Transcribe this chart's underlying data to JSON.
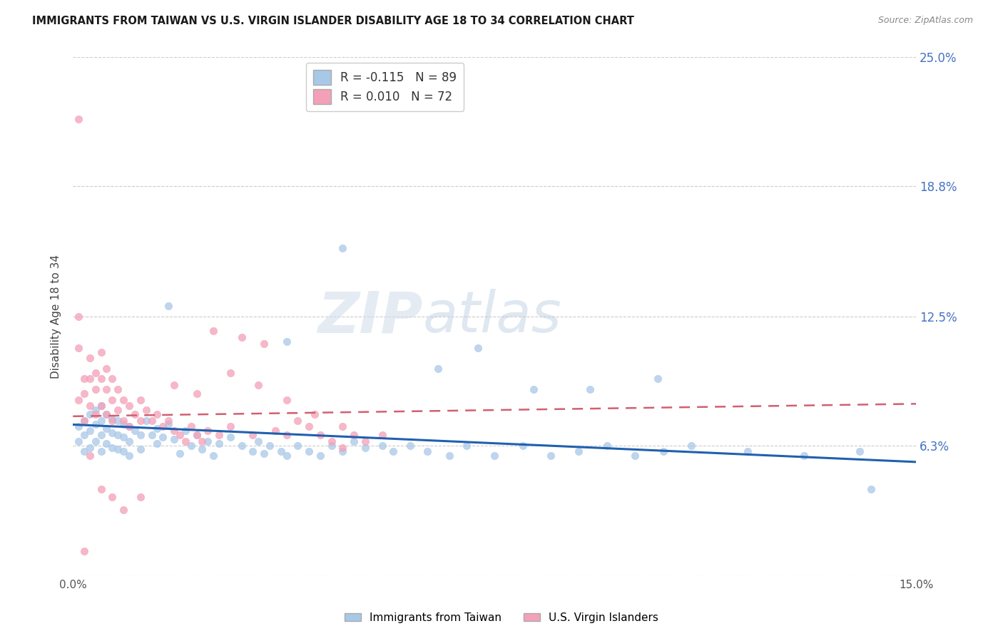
{
  "title": "IMMIGRANTS FROM TAIWAN VS U.S. VIRGIN ISLANDER DISABILITY AGE 18 TO 34 CORRELATION CHART",
  "source": "Source: ZipAtlas.com",
  "ylabel": "Disability Age 18 to 34",
  "xlim": [
    0.0,
    0.15
  ],
  "ylim": [
    0.0,
    0.25
  ],
  "ytick_positions": [
    0.0,
    0.063,
    0.125,
    0.188,
    0.25
  ],
  "right_ytick_labels": [
    "",
    "6.3%",
    "12.5%",
    "18.8%",
    "25.0%"
  ],
  "taiwan_color": "#a8c8e8",
  "virgin_color": "#f4a0b8",
  "taiwan_line_color": "#2060b0",
  "virgin_line_color": "#d06070",
  "background_color": "#ffffff",
  "taiwan_R": -0.115,
  "taiwan_N": 89,
  "virgin_R": 0.01,
  "virgin_N": 72,
  "taiwan_scatter_x": [
    0.001,
    0.001,
    0.002,
    0.002,
    0.002,
    0.003,
    0.003,
    0.003,
    0.004,
    0.004,
    0.004,
    0.005,
    0.005,
    0.005,
    0.005,
    0.006,
    0.006,
    0.006,
    0.007,
    0.007,
    0.007,
    0.008,
    0.008,
    0.008,
    0.009,
    0.009,
    0.009,
    0.01,
    0.01,
    0.01,
    0.011,
    0.012,
    0.012,
    0.013,
    0.014,
    0.015,
    0.015,
    0.016,
    0.017,
    0.018,
    0.019,
    0.02,
    0.021,
    0.022,
    0.023,
    0.024,
    0.025,
    0.026,
    0.028,
    0.03,
    0.032,
    0.033,
    0.034,
    0.035,
    0.037,
    0.038,
    0.04,
    0.042,
    0.044,
    0.046,
    0.048,
    0.05,
    0.052,
    0.055,
    0.057,
    0.06,
    0.063,
    0.067,
    0.07,
    0.075,
    0.08,
    0.085,
    0.09,
    0.095,
    0.1,
    0.105,
    0.11,
    0.12,
    0.13,
    0.14,
    0.017,
    0.038,
    0.048,
    0.065,
    0.072,
    0.082,
    0.092,
    0.104,
    0.142
  ],
  "taiwan_scatter_y": [
    0.072,
    0.065,
    0.075,
    0.068,
    0.06,
    0.078,
    0.07,
    0.062,
    0.08,
    0.073,
    0.065,
    0.082,
    0.075,
    0.068,
    0.06,
    0.078,
    0.071,
    0.064,
    0.076,
    0.069,
    0.062,
    0.075,
    0.068,
    0.061,
    0.073,
    0.067,
    0.06,
    0.072,
    0.065,
    0.058,
    0.07,
    0.068,
    0.061,
    0.075,
    0.068,
    0.071,
    0.064,
    0.067,
    0.073,
    0.066,
    0.059,
    0.07,
    0.063,
    0.068,
    0.061,
    0.065,
    0.058,
    0.064,
    0.067,
    0.063,
    0.06,
    0.065,
    0.059,
    0.063,
    0.06,
    0.058,
    0.063,
    0.06,
    0.058,
    0.063,
    0.06,
    0.065,
    0.062,
    0.063,
    0.06,
    0.063,
    0.06,
    0.058,
    0.063,
    0.058,
    0.063,
    0.058,
    0.06,
    0.063,
    0.058,
    0.06,
    0.063,
    0.06,
    0.058,
    0.06,
    0.13,
    0.113,
    0.158,
    0.1,
    0.11,
    0.09,
    0.09,
    0.095,
    0.042
  ],
  "virgin_scatter_x": [
    0.001,
    0.001,
    0.001,
    0.002,
    0.002,
    0.002,
    0.003,
    0.003,
    0.003,
    0.004,
    0.004,
    0.004,
    0.005,
    0.005,
    0.005,
    0.006,
    0.006,
    0.006,
    0.007,
    0.007,
    0.007,
    0.008,
    0.008,
    0.009,
    0.009,
    0.01,
    0.01,
    0.011,
    0.012,
    0.012,
    0.013,
    0.014,
    0.015,
    0.016,
    0.017,
    0.018,
    0.019,
    0.02,
    0.021,
    0.022,
    0.023,
    0.024,
    0.025,
    0.026,
    0.028,
    0.03,
    0.032,
    0.034,
    0.036,
    0.038,
    0.04,
    0.042,
    0.044,
    0.046,
    0.048,
    0.05,
    0.052,
    0.055,
    0.018,
    0.022,
    0.028,
    0.033,
    0.038,
    0.043,
    0.048,
    0.003,
    0.005,
    0.007,
    0.009,
    0.012,
    0.001,
    0.002
  ],
  "virgin_scatter_y": [
    0.125,
    0.11,
    0.085,
    0.095,
    0.088,
    0.075,
    0.105,
    0.095,
    0.082,
    0.098,
    0.09,
    0.078,
    0.108,
    0.095,
    0.082,
    0.1,
    0.09,
    0.078,
    0.095,
    0.085,
    0.075,
    0.09,
    0.08,
    0.085,
    0.075,
    0.082,
    0.072,
    0.078,
    0.085,
    0.075,
    0.08,
    0.075,
    0.078,
    0.072,
    0.075,
    0.07,
    0.068,
    0.065,
    0.072,
    0.068,
    0.065,
    0.07,
    0.118,
    0.068,
    0.072,
    0.115,
    0.068,
    0.112,
    0.07,
    0.068,
    0.075,
    0.072,
    0.068,
    0.065,
    0.062,
    0.068,
    0.065,
    0.068,
    0.092,
    0.088,
    0.098,
    0.092,
    0.085,
    0.078,
    0.072,
    0.058,
    0.042,
    0.038,
    0.032,
    0.038,
    0.22,
    0.012
  ]
}
